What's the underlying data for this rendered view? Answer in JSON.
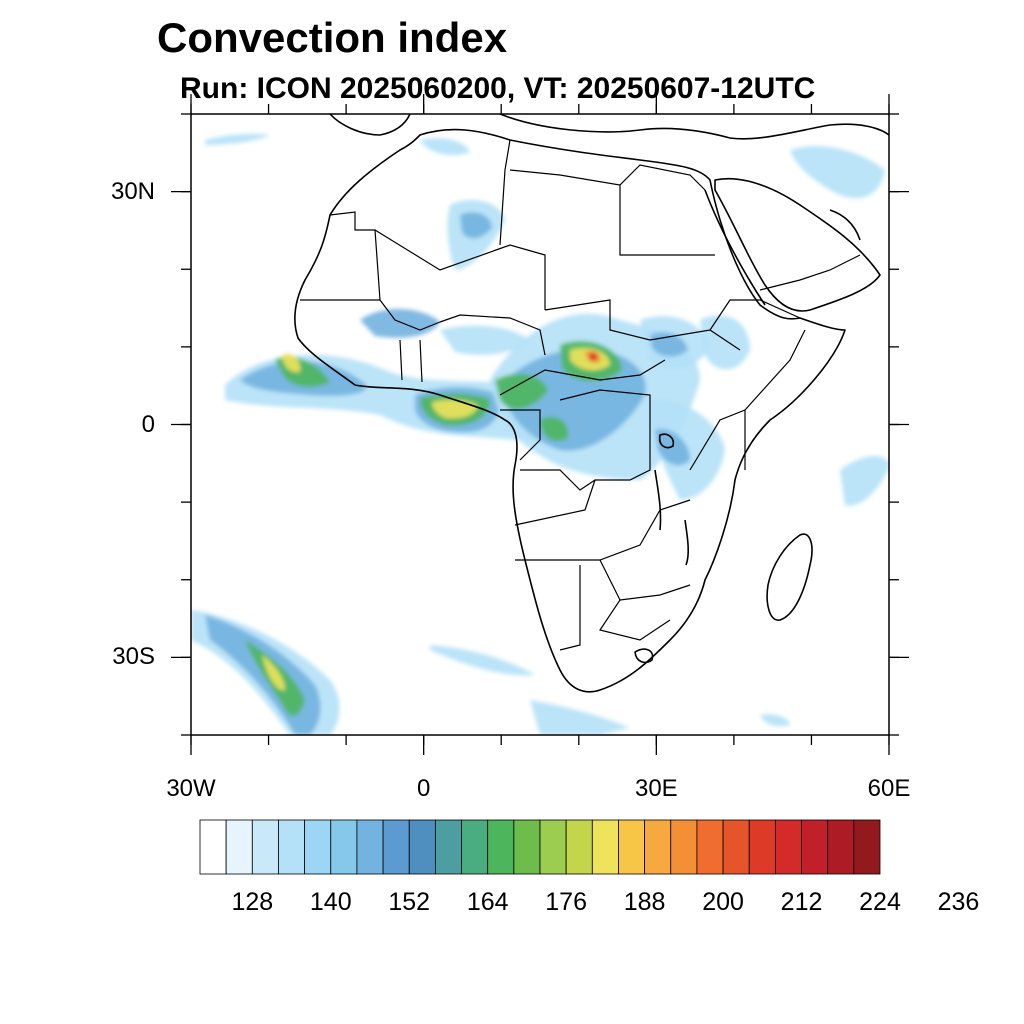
{
  "title": "Convection index",
  "subtitle": "Run: ICON 2025060200,  VT: 20250607-12UTC",
  "map": {
    "lon_range": [
      -30,
      60
    ],
    "lat_range": [
      -40,
      40
    ],
    "lat_ticks": [
      {
        "value": 30,
        "label": "30N"
      },
      {
        "value": 0,
        "label": "0"
      },
      {
        "value": -30,
        "label": "30S"
      }
    ],
    "lon_ticks": [
      {
        "value": -30,
        "label": "30W"
      },
      {
        "value": 0,
        "label": "0"
      },
      {
        "value": 30,
        "label": "30E"
      },
      {
        "value": 60,
        "label": "60E"
      }
    ],
    "minor_lat_every": 10,
    "minor_lon_every": 10
  },
  "colorbar": {
    "colors": [
      "#ffffff",
      "#e6f5fd",
      "#c9e9f8",
      "#b4e1f7",
      "#9bd6f4",
      "#86c8ea",
      "#72b3df",
      "#5b9bd2",
      "#4e8fc0",
      "#4d9ea0",
      "#4aad82",
      "#4db65c",
      "#6dbc4c",
      "#9ccc50",
      "#c3d54a",
      "#eee35b",
      "#f7c647",
      "#f5a93e",
      "#f48f36",
      "#ef6d2f",
      "#e65429",
      "#de3a28",
      "#d42a2a",
      "#c11f29",
      "#ad1b24",
      "#921a1d"
    ],
    "labels": [
      "128",
      "140",
      "152",
      "164",
      "176",
      "188",
      "200",
      "212",
      "224",
      "236"
    ]
  },
  "field_colors": {
    "light": "#b4e1f7",
    "mid": "#72b3df",
    "deep": "#4e8fc0",
    "green": "#4db65c",
    "yellow": "#eee35b",
    "orange": "#f48f36",
    "red": "#d42a2a"
  }
}
